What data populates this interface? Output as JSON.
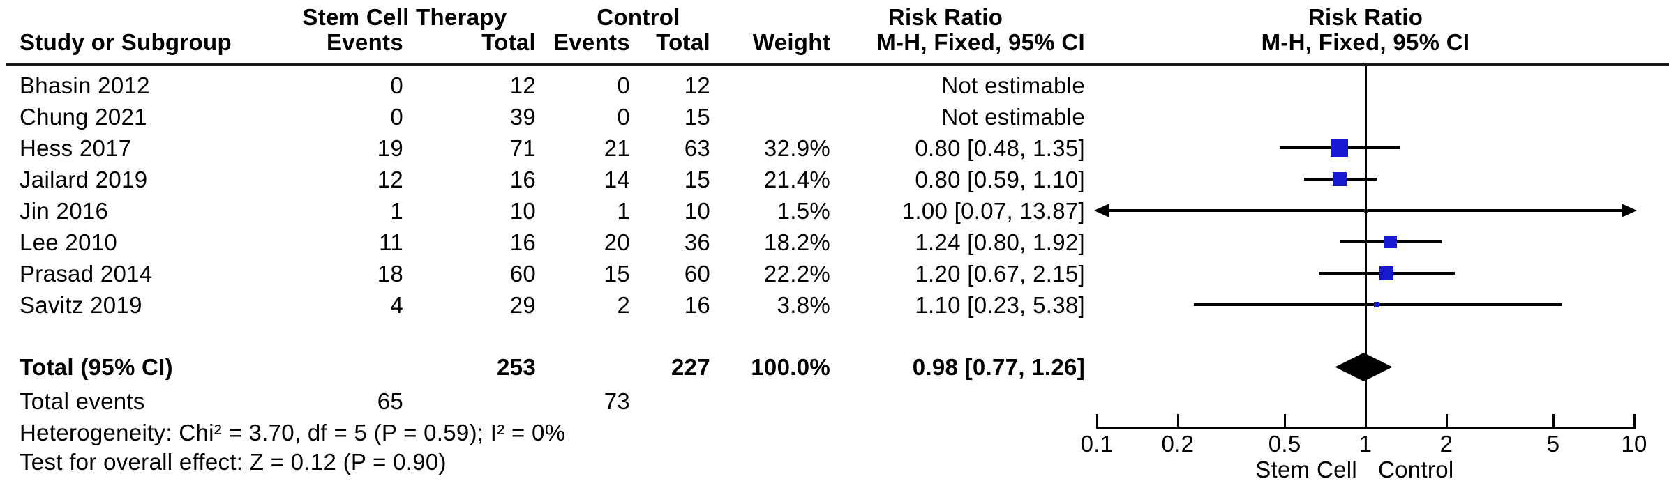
{
  "header": {
    "study_col": "Study or Subgroup",
    "group1": "Stem Cell Therapy",
    "group2": "Control",
    "events_col_1": "Events",
    "total_col_1": "Total",
    "events_col_2": "Events",
    "total_col_2": "Total",
    "weight_col": "Weight",
    "rr_title": "Risk Ratio",
    "rr_sub": "M-H, Fixed, 95% CI",
    "plot_rr_title": "Risk Ratio",
    "plot_rr_sub": "M-H, Fixed, 95% CI"
  },
  "chart_data": {
    "type": "forest",
    "effect_measure": "Risk Ratio",
    "method": "M-H, Fixed, 95% CI",
    "studies": [
      {
        "name": "Bhasin 2012",
        "events1": 0,
        "total1": 12,
        "events2": 0,
        "total2": 12,
        "weight": null,
        "weight_label": "",
        "rr": null,
        "ci": null,
        "label": "Not estimable"
      },
      {
        "name": "Chung 2021",
        "events1": 0,
        "total1": 39,
        "events2": 0,
        "total2": 15,
        "weight": null,
        "weight_label": "",
        "rr": null,
        "ci": null,
        "label": "Not estimable"
      },
      {
        "name": "Hess 2017",
        "events1": 19,
        "total1": 71,
        "events2": 21,
        "total2": 63,
        "weight": 32.9,
        "weight_label": "32.9%",
        "rr": 0.8,
        "ci": [
          0.48,
          1.35
        ],
        "label": "0.80 [0.48, 1.35]"
      },
      {
        "name": "Jailard 2019",
        "events1": 12,
        "total1": 16,
        "events2": 14,
        "total2": 15,
        "weight": 21.4,
        "weight_label": "21.4%",
        "rr": 0.8,
        "ci": [
          0.59,
          1.1
        ],
        "label": "0.80 [0.59, 1.10]"
      },
      {
        "name": "Jin 2016",
        "events1": 1,
        "total1": 10,
        "events2": 1,
        "total2": 10,
        "weight": 1.5,
        "weight_label": "1.5%",
        "rr": 1.0,
        "ci": [
          0.07,
          13.87
        ],
        "label": "1.00 [0.07, 13.87]"
      },
      {
        "name": "Lee 2010",
        "events1": 11,
        "total1": 16,
        "events2": 20,
        "total2": 36,
        "weight": 18.2,
        "weight_label": "18.2%",
        "rr": 1.24,
        "ci": [
          0.8,
          1.92
        ],
        "label": "1.24 [0.80, 1.92]"
      },
      {
        "name": "Prasad 2014",
        "events1": 18,
        "total1": 60,
        "events2": 15,
        "total2": 60,
        "weight": 22.2,
        "weight_label": "22.2%",
        "rr": 1.2,
        "ci": [
          0.67,
          2.15
        ],
        "label": "1.20 [0.67, 2.15]"
      },
      {
        "name": "Savitz 2019",
        "events1": 4,
        "total1": 29,
        "events2": 2,
        "total2": 16,
        "weight": 3.8,
        "weight_label": "3.8%",
        "rr": 1.1,
        "ci": [
          0.23,
          5.38
        ],
        "label": "1.10 [0.23, 5.38]"
      }
    ],
    "total": {
      "name": "Total (95% CI)",
      "total1": 253,
      "total2": 227,
      "weight_label": "100.0%",
      "rr": 0.98,
      "ci": [
        0.77,
        1.26
      ],
      "label": "0.98 [0.77, 1.26]"
    },
    "total_events": {
      "label": "Total events",
      "events1": 65,
      "events2": 73
    },
    "heterogeneity": "Heterogeneity: Chi² = 3.70, df = 5 (P = 0.59); I² = 0%",
    "overall_effect": "Test for overall effect: Z = 0.12 (P = 0.90)",
    "axis": {
      "scale": "log",
      "xlim": [
        0.1,
        10
      ],
      "ticks": [
        0.1,
        0.2,
        0.5,
        1,
        2,
        5,
        10
      ],
      "tick_labels": [
        "0.1",
        "0.2",
        "0.5",
        "1",
        "2",
        "5",
        "10"
      ],
      "left_label": "Stem Cell",
      "right_label": "Control",
      "grid": false
    },
    "colors": {
      "square": "#1919d2",
      "diamond": "#000000",
      "line": "#000000"
    }
  }
}
